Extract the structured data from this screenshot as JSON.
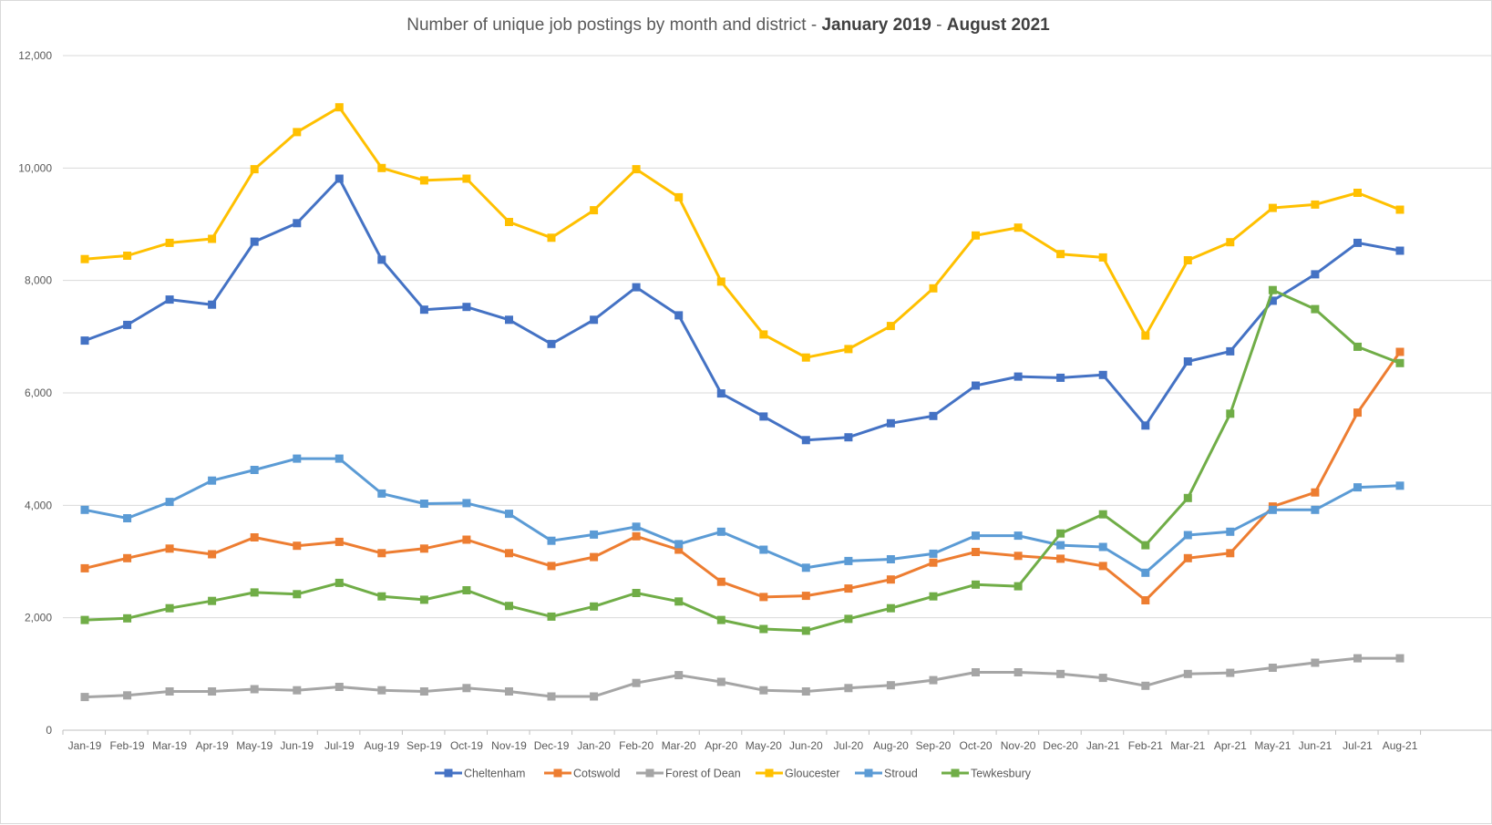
{
  "chart_data": {
    "type": "line",
    "title_parts": [
      {
        "text": "Number of unique job postings by month and district - ",
        "bold": false
      },
      {
        "text": "January 2019",
        "bold": true
      },
      {
        "text": " - ",
        "bold": false
      },
      {
        "text": "August 2021",
        "bold": true
      }
    ],
    "xlabel": "",
    "ylabel": "",
    "ylim": [
      0,
      12000
    ],
    "yticks": [
      0,
      2000,
      4000,
      6000,
      8000,
      10000,
      12000
    ],
    "ytick_labels": [
      "0",
      "2,000",
      "4,000",
      "6,000",
      "8,000",
      "10,000",
      "12,000"
    ],
    "grid": true,
    "legend_position": "bottom",
    "categories": [
      "Jan-19",
      "Feb-19",
      "Mar-19",
      "Apr-19",
      "May-19",
      "Jun-19",
      "Jul-19",
      "Aug-19",
      "Sep-19",
      "Oct-19",
      "Nov-19",
      "Dec-19",
      "Jan-20",
      "Feb-20",
      "Mar-20",
      "Apr-20",
      "May-20",
      "Jun-20",
      "Jul-20",
      "Aug-20",
      "Sep-20",
      "Oct-20",
      "Nov-20",
      "Dec-20",
      "Jan-21",
      "Feb-21",
      "Mar-21",
      "Apr-21",
      "May-21",
      "Jun-21",
      "Jul-21",
      "Aug-21"
    ],
    "series": [
      {
        "name": "Cheltenham",
        "color": "#4472c4",
        "values": [
          6930,
          7210,
          7660,
          7570,
          8690,
          9020,
          9810,
          8370,
          7480,
          7530,
          7300,
          6870,
          7300,
          7880,
          7380,
          5990,
          5580,
          5160,
          5210,
          5460,
          5590,
          6130,
          6290,
          6270,
          6320,
          5420,
          6560,
          6740,
          7640,
          8110,
          8670,
          8530
        ]
      },
      {
        "name": "Cotswold",
        "color": "#ed7d31",
        "values": [
          2880,
          3060,
          3230,
          3130,
          3430,
          3280,
          3350,
          3150,
          3230,
          3390,
          3150,
          2920,
          3080,
          3450,
          3210,
          2640,
          2370,
          2390,
          2520,
          2680,
          2980,
          3170,
          3100,
          3050,
          2920,
          2310,
          3060,
          3150,
          3980,
          4230,
          5650,
          6730
        ]
      },
      {
        "name": "Forest of Dean",
        "color": "#a5a5a5",
        "values": [
          590,
          620,
          690,
          690,
          730,
          710,
          770,
          710,
          690,
          750,
          690,
          600,
          600,
          840,
          980,
          860,
          710,
          690,
          750,
          800,
          890,
          1030,
          1030,
          1000,
          930,
          790,
          1000,
          1020,
          1110,
          1200,
          1280,
          1280
        ]
      },
      {
        "name": "Gloucester",
        "color": "#ffc000",
        "values": [
          8380,
          8440,
          8670,
          8740,
          9980,
          10640,
          11080,
          10000,
          9780,
          9810,
          9040,
          8760,
          9250,
          9980,
          9480,
          7980,
          7040,
          6630,
          6780,
          7190,
          7860,
          8800,
          8940,
          8470,
          8410,
          7020,
          8360,
          8680,
          9290,
          9350,
          9560,
          9260
        ]
      },
      {
        "name": "Stroud",
        "color": "#5b9bd5",
        "values": [
          3920,
          3770,
          4060,
          4440,
          4630,
          4830,
          4830,
          4210,
          4030,
          4040,
          3850,
          3370,
          3480,
          3620,
          3310,
          3530,
          3210,
          2890,
          3010,
          3040,
          3140,
          3460,
          3460,
          3290,
          3260,
          2800,
          3470,
          3530,
          3920,
          3920,
          4320,
          4350
        ]
      },
      {
        "name": "Tewkesbury",
        "color": "#70ad47",
        "values": [
          1960,
          1990,
          2170,
          2300,
          2450,
          2420,
          2620,
          2380,
          2320,
          2490,
          2210,
          2020,
          2200,
          2440,
          2290,
          1960,
          1800,
          1770,
          1980,
          2170,
          2380,
          2590,
          2560,
          3500,
          3840,
          3290,
          4130,
          5630,
          7830,
          7490,
          6820,
          6530
        ]
      }
    ]
  }
}
